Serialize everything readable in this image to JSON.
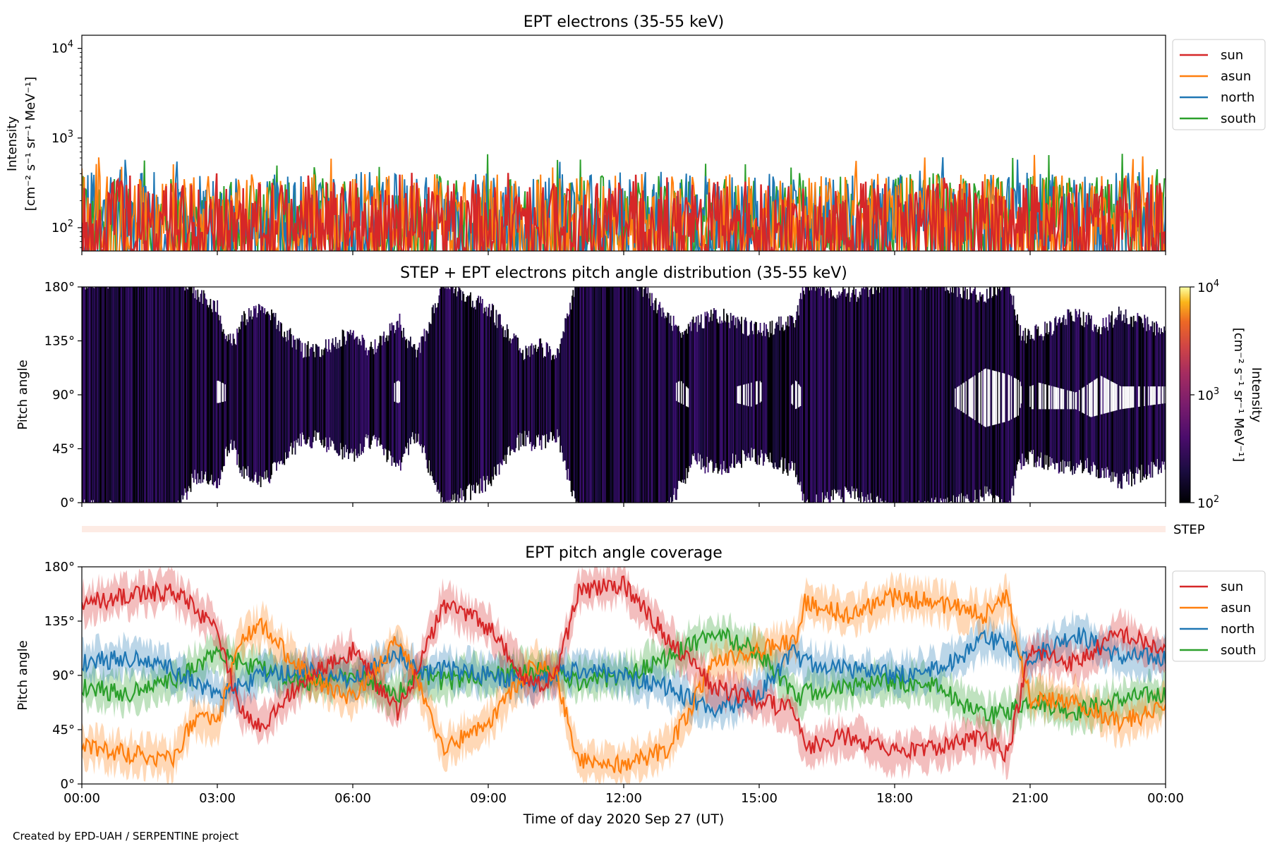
{
  "credit": "Created by EPD-UAH / SERPENTINE project",
  "colors": {
    "sun": "#d62728",
    "asun": "#ff7f0e",
    "north": "#1f77b4",
    "south": "#2ca02c"
  },
  "chart_data": [
    {
      "type": "line",
      "title": "EPT electrons (35-55 keV)",
      "ylabel_line1": "Intensity",
      "ylabel_line2": "[cm⁻² s⁻¹ sr⁻¹ MeV⁻¹]",
      "yscale": "log",
      "ylim": [
        55,
        14000
      ],
      "ytick_values": [
        100,
        1000,
        10000
      ],
      "xlim_hours": [
        0,
        24
      ],
      "legend": [
        "sun",
        "asun",
        "north",
        "south"
      ],
      "legend_position": "outside upper right",
      "series": [
        {
          "name": "sun",
          "typical_range": [
            55,
            330
          ],
          "max": 420
        },
        {
          "name": "asun",
          "typical_range": [
            55,
            400
          ],
          "max": 650
        },
        {
          "name": "north",
          "typical_range": [
            55,
            420
          ],
          "max": 680
        },
        {
          "name": "south",
          "typical_range": [
            55,
            380
          ],
          "max": 680
        }
      ]
    },
    {
      "type": "heatmap",
      "title": "STEP + EPT electrons pitch angle distribution (35-55 keV)",
      "ylabel": "Pitch angle",
      "ylim_deg": [
        0,
        180
      ],
      "ytick_labels": [
        "0°",
        "45°",
        "90°",
        "135°",
        "180°"
      ],
      "colorbar": {
        "label_line1": "Intensity",
        "label_line2": "[cm⁻² s⁻¹ sr⁻¹ MeV⁻¹]",
        "scale": "log",
        "range": [
          100,
          10000
        ],
        "colormap": "inferno"
      }
    },
    {
      "type": "bar",
      "label": "STEP",
      "note": "thin coverage strip"
    },
    {
      "type": "line",
      "title": "EPT pitch angle coverage",
      "ylabel": "Pitch angle",
      "ylim_deg": [
        0,
        180
      ],
      "ytick_labels": [
        "0°",
        "45°",
        "90°",
        "135°",
        "180°"
      ],
      "xlabel": "Time of day 2020 Sep 27 (UT)",
      "xtick_labels": [
        "00:00",
        "03:00",
        "06:00",
        "09:00",
        "12:00",
        "15:00",
        "18:00",
        "21:00",
        "00:00"
      ],
      "legend": [
        "sun",
        "asun",
        "north",
        "south"
      ],
      "legend_position": "outside upper right",
      "shaded_band": "pitch-angle spread around each series",
      "series": [
        {
          "name": "sun",
          "keypoints": [
            [
              0,
              150
            ],
            [
              1,
              155
            ],
            [
              2,
              160
            ],
            [
              3,
              130
            ],
            [
              3.5,
              60
            ],
            [
              4,
              50
            ],
            [
              5,
              90
            ],
            [
              6,
              110
            ],
            [
              7,
              60
            ],
            [
              7.5,
              100
            ],
            [
              8,
              150
            ],
            [
              9,
              130
            ],
            [
              10,
              80
            ],
            [
              10.5,
              90
            ],
            [
              11,
              160
            ],
            [
              12,
              165
            ],
            [
              13,
              120
            ],
            [
              14,
              80
            ],
            [
              15,
              70
            ],
            [
              15.8,
              60
            ],
            [
              16,
              30
            ],
            [
              17,
              40
            ],
            [
              18,
              25
            ],
            [
              19,
              30
            ],
            [
              20,
              40
            ],
            [
              20.5,
              25
            ],
            [
              21,
              110
            ],
            [
              22,
              100
            ],
            [
              23,
              125
            ],
            [
              24,
              110
            ]
          ]
        },
        {
          "name": "asun",
          "keypoints": [
            [
              0,
              30
            ],
            [
              1,
              25
            ],
            [
              2,
              20
            ],
            [
              2.5,
              55
            ],
            [
              3,
              50
            ],
            [
              3.5,
              120
            ],
            [
              4,
              130
            ],
            [
              5,
              90
            ],
            [
              6,
              70
            ],
            [
              7,
              120
            ],
            [
              7.5,
              80
            ],
            [
              8,
              30
            ],
            [
              9,
              50
            ],
            [
              10,
              100
            ],
            [
              10.5,
              90
            ],
            [
              11,
              20
            ],
            [
              12,
              15
            ],
            [
              13,
              30
            ],
            [
              14,
              100
            ],
            [
              15,
              110
            ],
            [
              15.8,
              120
            ],
            [
              16,
              150
            ],
            [
              17,
              140
            ],
            [
              18,
              155
            ],
            [
              19,
              150
            ],
            [
              20,
              140
            ],
            [
              20.5,
              155
            ],
            [
              21,
              70
            ],
            [
              22,
              70
            ],
            [
              23,
              50
            ],
            [
              24,
              65
            ]
          ]
        },
        {
          "name": "north",
          "keypoints": [
            [
              0,
              100
            ],
            [
              1,
              105
            ],
            [
              2,
              95
            ],
            [
              3,
              75
            ],
            [
              3.5,
              80
            ],
            [
              4,
              90
            ],
            [
              5,
              95
            ],
            [
              6,
              85
            ],
            [
              7,
              110
            ],
            [
              7.5,
              90
            ],
            [
              8,
              95
            ],
            [
              9,
              90
            ],
            [
              10,
              85
            ],
            [
              11,
              95
            ],
            [
              12,
              90
            ],
            [
              13,
              80
            ],
            [
              14,
              60
            ],
            [
              15,
              75
            ],
            [
              15.8,
              110
            ],
            [
              16,
              100
            ],
            [
              17,
              95
            ],
            [
              18,
              90
            ],
            [
              19,
              95
            ],
            [
              20,
              120
            ],
            [
              20.5,
              115
            ],
            [
              21,
              105
            ],
            [
              22,
              125
            ],
            [
              23,
              105
            ],
            [
              24,
              105
            ]
          ]
        },
        {
          "name": "south",
          "keypoints": [
            [
              0,
              80
            ],
            [
              1,
              75
            ],
            [
              2,
              85
            ],
            [
              3,
              110
            ],
            [
              3.5,
              100
            ],
            [
              4,
              95
            ],
            [
              5,
              85
            ],
            [
              6,
              90
            ],
            [
              7,
              75
            ],
            [
              7.5,
              90
            ],
            [
              8,
              85
            ],
            [
              9,
              90
            ],
            [
              10,
              95
            ],
            [
              11,
              85
            ],
            [
              12,
              90
            ],
            [
              13,
              105
            ],
            [
              14,
              125
            ],
            [
              15,
              110
            ],
            [
              15.8,
              70
            ],
            [
              16,
              75
            ],
            [
              17,
              80
            ],
            [
              18,
              85
            ],
            [
              19,
              80
            ],
            [
              20,
              55
            ],
            [
              20.5,
              60
            ],
            [
              21,
              70
            ],
            [
              22,
              60
            ],
            [
              23,
              70
            ],
            [
              24,
              75
            ]
          ]
        }
      ]
    }
  ]
}
